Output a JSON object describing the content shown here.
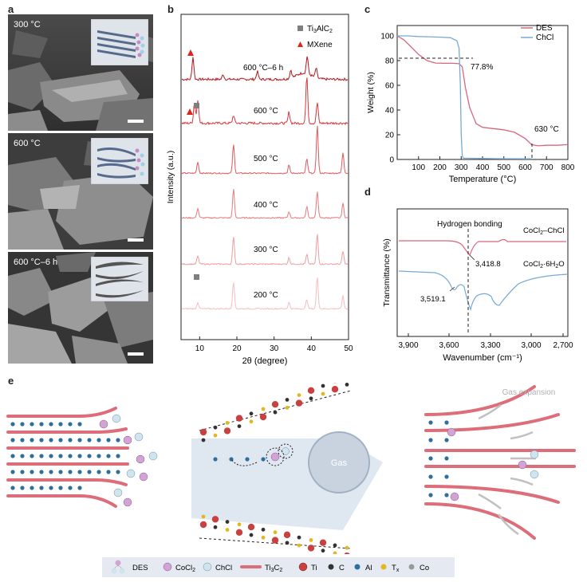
{
  "panel_labels": {
    "a": "a",
    "b": "b",
    "c": "c",
    "d": "d",
    "e": "e"
  },
  "panel_a": {
    "images": [
      {
        "temp": "300 °C"
      },
      {
        "temp": "600 °C"
      },
      {
        "temp": "600 °C–6 h"
      }
    ]
  },
  "panel_b": {
    "xlabel": "2θ (degree)",
    "ylabel": "Intensity (a.u.)",
    "x_ticks": [
      "10",
      "20",
      "30",
      "40",
      "50"
    ],
    "legend": [
      {
        "label": "Ti3AlC2",
        "marker": "square",
        "color": "#7f7f7f"
      },
      {
        "label": "MXene",
        "marker": "triangle",
        "color": "#e2231a"
      }
    ],
    "curve_labels": [
      "600 °C–6 h",
      "600 °C",
      "500 °C",
      "400 °C",
      "300 °C",
      "200 °C"
    ]
  },
  "chart_data": [
    {
      "type": "line",
      "panel": "b",
      "xlabel": "2θ (degree)",
      "ylabel": "Intensity (a.u.)",
      "xlim": [
        5,
        50
      ],
      "series": [
        {
          "name": "600 °C–6 h",
          "color": "#b5151b",
          "peaks": [
            8.2,
            16.3,
            25.5,
            34.5,
            38.9,
            41.3
          ]
        },
        {
          "name": "600 °C",
          "color": "#d8363b",
          "peaks": [
            8.6,
            9.5,
            19.1,
            34.0,
            38.8,
            41.6
          ]
        },
        {
          "name": "500 °C",
          "color": "#e0585b",
          "peaks": [
            9.5,
            19.1,
            34.0,
            38.8,
            41.6,
            48.5
          ]
        },
        {
          "name": "400 °C",
          "color": "#e77a7c",
          "peaks": [
            9.5,
            19.1,
            34.0,
            38.8,
            41.6,
            48.5
          ]
        },
        {
          "name": "300 °C",
          "color": "#ee9d9f",
          "peaks": [
            9.5,
            19.1,
            34.0,
            38.8,
            41.6,
            48.5
          ]
        },
        {
          "name": "200 °C",
          "color": "#f4bfc0",
          "peaks": [
            9.5,
            19.1,
            34.0,
            38.8,
            41.6,
            48.5
          ]
        }
      ]
    },
    {
      "type": "line",
      "panel": "c",
      "xlabel": "Temperature (°C)",
      "ylabel": "Weight (%)",
      "xlim": [
        0,
        800
      ],
      "ylim": [
        0,
        100
      ],
      "x_ticks": [
        "100",
        "200",
        "300",
        "400",
        "500",
        "600",
        "700",
        "800"
      ],
      "y_ticks": [
        "0",
        "20",
        "40",
        "60",
        "80",
        "100"
      ],
      "series": [
        {
          "name": "DES",
          "color": "#d7677e",
          "x": [
            0,
            30,
            60,
            100,
            140,
            180,
            220,
            260,
            290,
            305,
            320,
            340,
            370,
            400,
            450,
            500,
            550,
            600,
            630,
            660,
            700,
            750,
            800
          ],
          "y": [
            100,
            97,
            92,
            85,
            80,
            78,
            77.8,
            77.8,
            77.5,
            75,
            58,
            42,
            29,
            26,
            25,
            24,
            22,
            17,
            12,
            11,
            11.5,
            11.5,
            12
          ]
        },
        {
          "name": "ChCl",
          "color": "#78a9d4",
          "x": [
            0,
            50,
            100,
            150,
            200,
            250,
            280,
            290,
            296,
            300,
            305,
            310,
            400,
            500,
            600,
            630
          ],
          "y": [
            100,
            100,
            99.5,
            99.3,
            99,
            98.5,
            96,
            90,
            60,
            20,
            3,
            1,
            0.8,
            0.6,
            0.5,
            0.5
          ]
        }
      ],
      "annotations": [
        "77.8%",
        "630 °C"
      ]
    },
    {
      "type": "line",
      "panel": "d",
      "xlabel": "Wavenumber (cm⁻¹)",
      "ylabel": "Transmittance (%)",
      "x_ticks": [
        "3,900",
        "3,600",
        "3,300",
        "3,000",
        "2,700"
      ],
      "series": [
        {
          "name": "CoCl2–ChCl",
          "color": "#d7677e"
        },
        {
          "name": "CoCl2·6H2O",
          "color": "#78a9d4"
        }
      ],
      "annotations": [
        "Hydrogen bonding",
        "3,418.8",
        "3,519.1"
      ]
    }
  ],
  "panel_c_legend": [
    "DES",
    "ChCl"
  ],
  "panel_d_labels": {
    "hbond": "Hydrogen bonding",
    "peak1": "3,418.8",
    "peak2": "3,519.1",
    "s1": "CoCl2–ChCl",
    "s2": "CoCl2·6H2O"
  },
  "panel_e": {
    "gas_label": "Gas",
    "gas_expansion": "Gas expansion",
    "legend": [
      "DES",
      "CoCl2",
      "ChCl",
      "Ti3C2",
      "Ti",
      "C",
      "Al",
      "Tx",
      "Co"
    ]
  },
  "colors": {
    "xrd_dark": "#b5151b",
    "des": "#d7677e",
    "chcl": "#78a9d4",
    "layer": "#dd6d79",
    "legend_bg": "#e5eaf2"
  }
}
